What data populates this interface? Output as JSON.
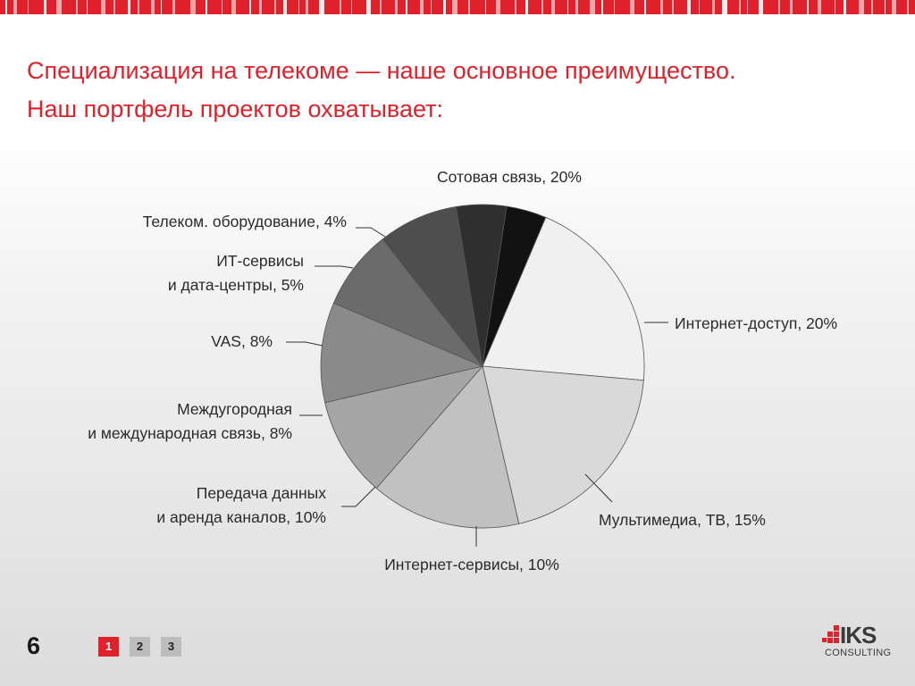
{
  "slide": {
    "title_line1": "Специализация на телекоме — наше основное преимущество.",
    "title_line2": "Наш портфель проектов охватывает:",
    "page_number": "6"
  },
  "pager": {
    "pages": [
      "1",
      "2",
      "3"
    ],
    "active": "1"
  },
  "logo": {
    "mark": "IKS",
    "sub": "CONSULTING"
  },
  "colors": {
    "accent": "#e0202a"
  },
  "chart_data": {
    "type": "pie",
    "slices": [
      {
        "label": "Сотовая связь, 20%",
        "value": 20,
        "color": "#f0f0f0"
      },
      {
        "label": "Интернет-доступ, 20%",
        "value": 20,
        "color": "#d9d9d9"
      },
      {
        "label": "Мультимедиа, ТВ, 15%",
        "value": 15,
        "color": "#c1c1c1"
      },
      {
        "label": "Интернет-сервисы, 10%",
        "value": 10,
        "color": "#a6a6a6"
      },
      {
        "label_lines": [
          "Передача данных",
          "и аренда каналов, 10%"
        ],
        "value": 10,
        "color": "#8a8a8a"
      },
      {
        "label_lines": [
          "Междугородная",
          "и международная связь, 8%"
        ],
        "value": 8,
        "color": "#6b6b6b"
      },
      {
        "label": "VAS, 8%",
        "value": 8,
        "color": "#4e4e4e"
      },
      {
        "label_lines": [
          "ИТ-сервисы",
          "и дата-центры, 5%"
        ],
        "value": 5,
        "color": "#2f2f2f"
      },
      {
        "label": "Телеком. оборудование, 4%",
        "value": 4,
        "color": "#121212"
      }
    ]
  }
}
